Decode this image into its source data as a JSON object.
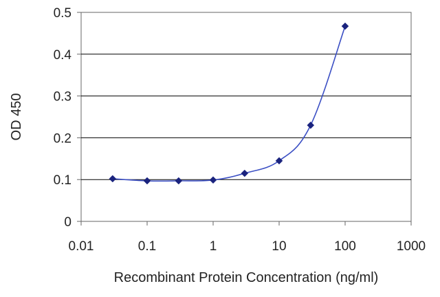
{
  "chart_data": {
    "type": "line",
    "title": "",
    "xlabel": "Recombinant Protein Concentration (ng/ml)",
    "ylabel": "OD 450",
    "x_scale": "log",
    "xlim": [
      0.01,
      1000
    ],
    "ylim": [
      0,
      0.5
    ],
    "x_ticks": [
      "0.01",
      "0.1",
      "1",
      "10",
      "100",
      "1000"
    ],
    "y_ticks": [
      "0",
      "0.1",
      "0.2",
      "0.3",
      "0.4",
      "0.5"
    ],
    "grid": "horizontal",
    "legend": "none",
    "series": [
      {
        "x": [
          0.03,
          0.1,
          0.3,
          1,
          3,
          10,
          30,
          100
        ],
        "y": [
          0.102,
          0.097,
          0.097,
          0.099,
          0.115,
          0.145,
          0.23,
          0.467
        ]
      }
    ],
    "colors": {
      "series_line": "#3b4fc4",
      "marker": "#1a237e",
      "grid": "#000000",
      "plot_border": "#666666"
    }
  }
}
